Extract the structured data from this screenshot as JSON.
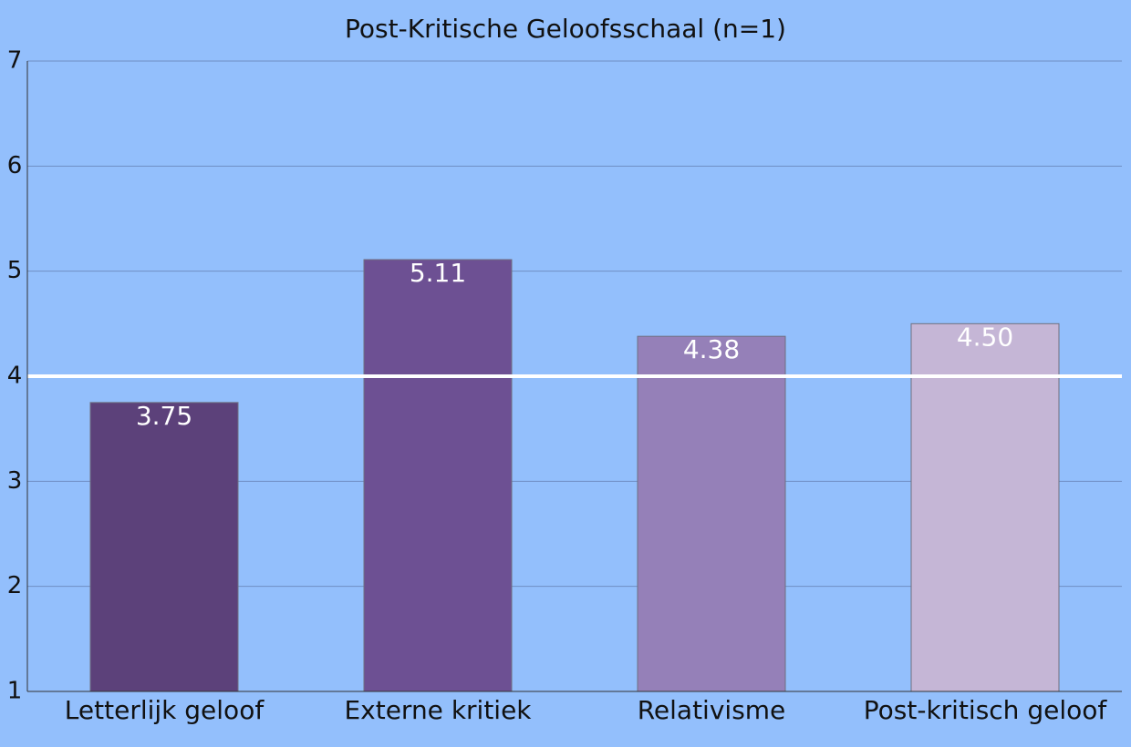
{
  "chart_data": {
    "type": "bar",
    "title": "Post-Kritische Geloofsschaal (n=1)",
    "categories": [
      "Letterlijk geloof",
      "Externe kritiek",
      "Relativisme",
      "Post-kritisch geloof"
    ],
    "values": [
      3.75,
      5.11,
      4.38,
      4.5
    ],
    "value_labels": [
      "3.75",
      "5.11",
      "4.38",
      "4.50"
    ],
    "colors": [
      "#5c417a",
      "#6d5093",
      "#9580b8",
      "#c5b6d6"
    ],
    "ylim": [
      1,
      7
    ],
    "yticks": [
      1,
      2,
      3,
      4,
      5,
      6,
      7
    ],
    "grid": true,
    "reference_line": 4
  }
}
